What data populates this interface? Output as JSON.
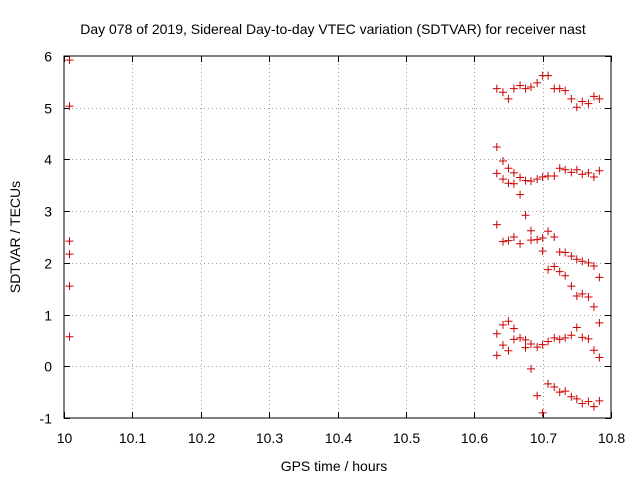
{
  "chart_data": {
    "type": "scatter",
    "title": "Day 078 of 2019, Sidereal Day-to-day VTEC variation (SDTVAR) for receiver nast",
    "xlabel": "GPS time / hours",
    "ylabel": "SDTVAR / TECUs",
    "xlim": [
      10,
      10.8
    ],
    "ylim": [
      -1,
      6
    ],
    "xticks": [
      10,
      10.1,
      10.2,
      10.3,
      10.4,
      10.5,
      10.6,
      10.7,
      10.8
    ],
    "xtick_labels": [
      "10",
      "10.1",
      "10.2",
      "10.3",
      "10.4",
      "10.5",
      "10.6",
      "10.7",
      "10.8"
    ],
    "yticks": [
      -1,
      0,
      1,
      2,
      3,
      4,
      5,
      6
    ],
    "ytick_labels": [
      "-1",
      "0",
      "1",
      "2",
      "3",
      "4",
      "5",
      "6"
    ],
    "grid": true,
    "marker": "+",
    "color": "#cc0000",
    "points": [
      [
        10.008,
        5.92
      ],
      [
        10.008,
        5.03
      ],
      [
        10.008,
        2.42
      ],
      [
        10.008,
        2.17
      ],
      [
        10.008,
        1.55
      ],
      [
        10.008,
        0.57
      ],
      [
        10.633,
        5.37
      ],
      [
        10.642,
        5.3
      ],
      [
        10.65,
        5.17
      ],
      [
        10.658,
        5.37
      ],
      [
        10.667,
        5.43
      ],
      [
        10.675,
        5.37
      ],
      [
        10.683,
        5.4
      ],
      [
        10.692,
        5.48
      ],
      [
        10.7,
        5.62
      ],
      [
        10.708,
        5.62
      ],
      [
        10.717,
        5.37
      ],
      [
        10.725,
        5.37
      ],
      [
        10.733,
        5.33
      ],
      [
        10.742,
        5.17
      ],
      [
        10.75,
        5.01
      ],
      [
        10.758,
        5.12
      ],
      [
        10.767,
        5.08
      ],
      [
        10.775,
        5.22
      ],
      [
        10.783,
        5.17
      ],
      [
        10.633,
        4.24
      ],
      [
        10.642,
        3.97
      ],
      [
        10.65,
        3.83
      ],
      [
        10.658,
        3.74
      ],
      [
        10.667,
        3.65
      ],
      [
        10.675,
        3.59
      ],
      [
        10.683,
        3.58
      ],
      [
        10.692,
        3.62
      ],
      [
        10.7,
        3.66
      ],
      [
        10.708,
        3.68
      ],
      [
        10.717,
        3.68
      ],
      [
        10.725,
        3.83
      ],
      [
        10.733,
        3.8
      ],
      [
        10.742,
        3.75
      ],
      [
        10.75,
        3.8
      ],
      [
        10.758,
        3.71
      ],
      [
        10.767,
        3.74
      ],
      [
        10.775,
        3.66
      ],
      [
        10.783,
        3.78
      ],
      [
        10.633,
        3.73
      ],
      [
        10.642,
        3.62
      ],
      [
        10.65,
        3.54
      ],
      [
        10.658,
        3.53
      ],
      [
        10.667,
        3.32
      ],
      [
        10.633,
        2.74
      ],
      [
        10.642,
        2.41
      ],
      [
        10.65,
        2.43
      ],
      [
        10.658,
        2.5
      ],
      [
        10.667,
        2.37
      ],
      [
        10.675,
        2.92
      ],
      [
        10.683,
        2.44
      ],
      [
        10.683,
        2.62
      ],
      [
        10.692,
        2.45
      ],
      [
        10.7,
        2.48
      ],
      [
        10.7,
        2.23
      ],
      [
        10.708,
        2.61
      ],
      [
        10.717,
        2.5
      ],
      [
        10.708,
        1.87
      ],
      [
        10.717,
        1.93
      ],
      [
        10.725,
        1.83
      ],
      [
        10.725,
        2.21
      ],
      [
        10.733,
        2.2
      ],
      [
        10.733,
        1.75
      ],
      [
        10.742,
        2.13
      ],
      [
        10.742,
        1.55
      ],
      [
        10.75,
        2.07
      ],
      [
        10.75,
        1.36
      ],
      [
        10.758,
        2.03
      ],
      [
        10.758,
        1.4
      ],
      [
        10.767,
        2.0
      ],
      [
        10.767,
        1.34
      ],
      [
        10.775,
        1.94
      ],
      [
        10.775,
        1.15
      ],
      [
        10.783,
        1.72
      ],
      [
        10.633,
        0.63
      ],
      [
        10.633,
        0.21
      ],
      [
        10.642,
        0.8
      ],
      [
        10.642,
        0.41
      ],
      [
        10.65,
        0.87
      ],
      [
        10.65,
        0.3
      ],
      [
        10.658,
        0.73
      ],
      [
        10.658,
        0.52
      ],
      [
        10.667,
        0.55
      ],
      [
        10.675,
        0.51
      ],
      [
        10.675,
        0.36
      ],
      [
        10.683,
        0.43
      ],
      [
        10.683,
        -0.05
      ],
      [
        10.692,
        0.37
      ],
      [
        10.692,
        -0.57
      ],
      [
        10.7,
        0.42
      ],
      [
        10.7,
        -0.9
      ],
      [
        10.708,
        0.48
      ],
      [
        10.708,
        -0.34
      ],
      [
        10.717,
        0.55
      ],
      [
        10.717,
        -0.4
      ],
      [
        10.725,
        0.52
      ],
      [
        10.725,
        -0.5
      ],
      [
        10.733,
        0.55
      ],
      [
        10.733,
        -0.48
      ],
      [
        10.742,
        0.6
      ],
      [
        10.742,
        -0.59
      ],
      [
        10.75,
        0.75
      ],
      [
        10.75,
        -0.63
      ],
      [
        10.758,
        0.56
      ],
      [
        10.758,
        -0.72
      ],
      [
        10.767,
        0.53
      ],
      [
        10.767,
        -0.68
      ],
      [
        10.775,
        0.31
      ],
      [
        10.775,
        -0.78
      ],
      [
        10.783,
        0.17
      ],
      [
        10.783,
        0.84
      ],
      [
        10.783,
        -0.67
      ]
    ]
  }
}
